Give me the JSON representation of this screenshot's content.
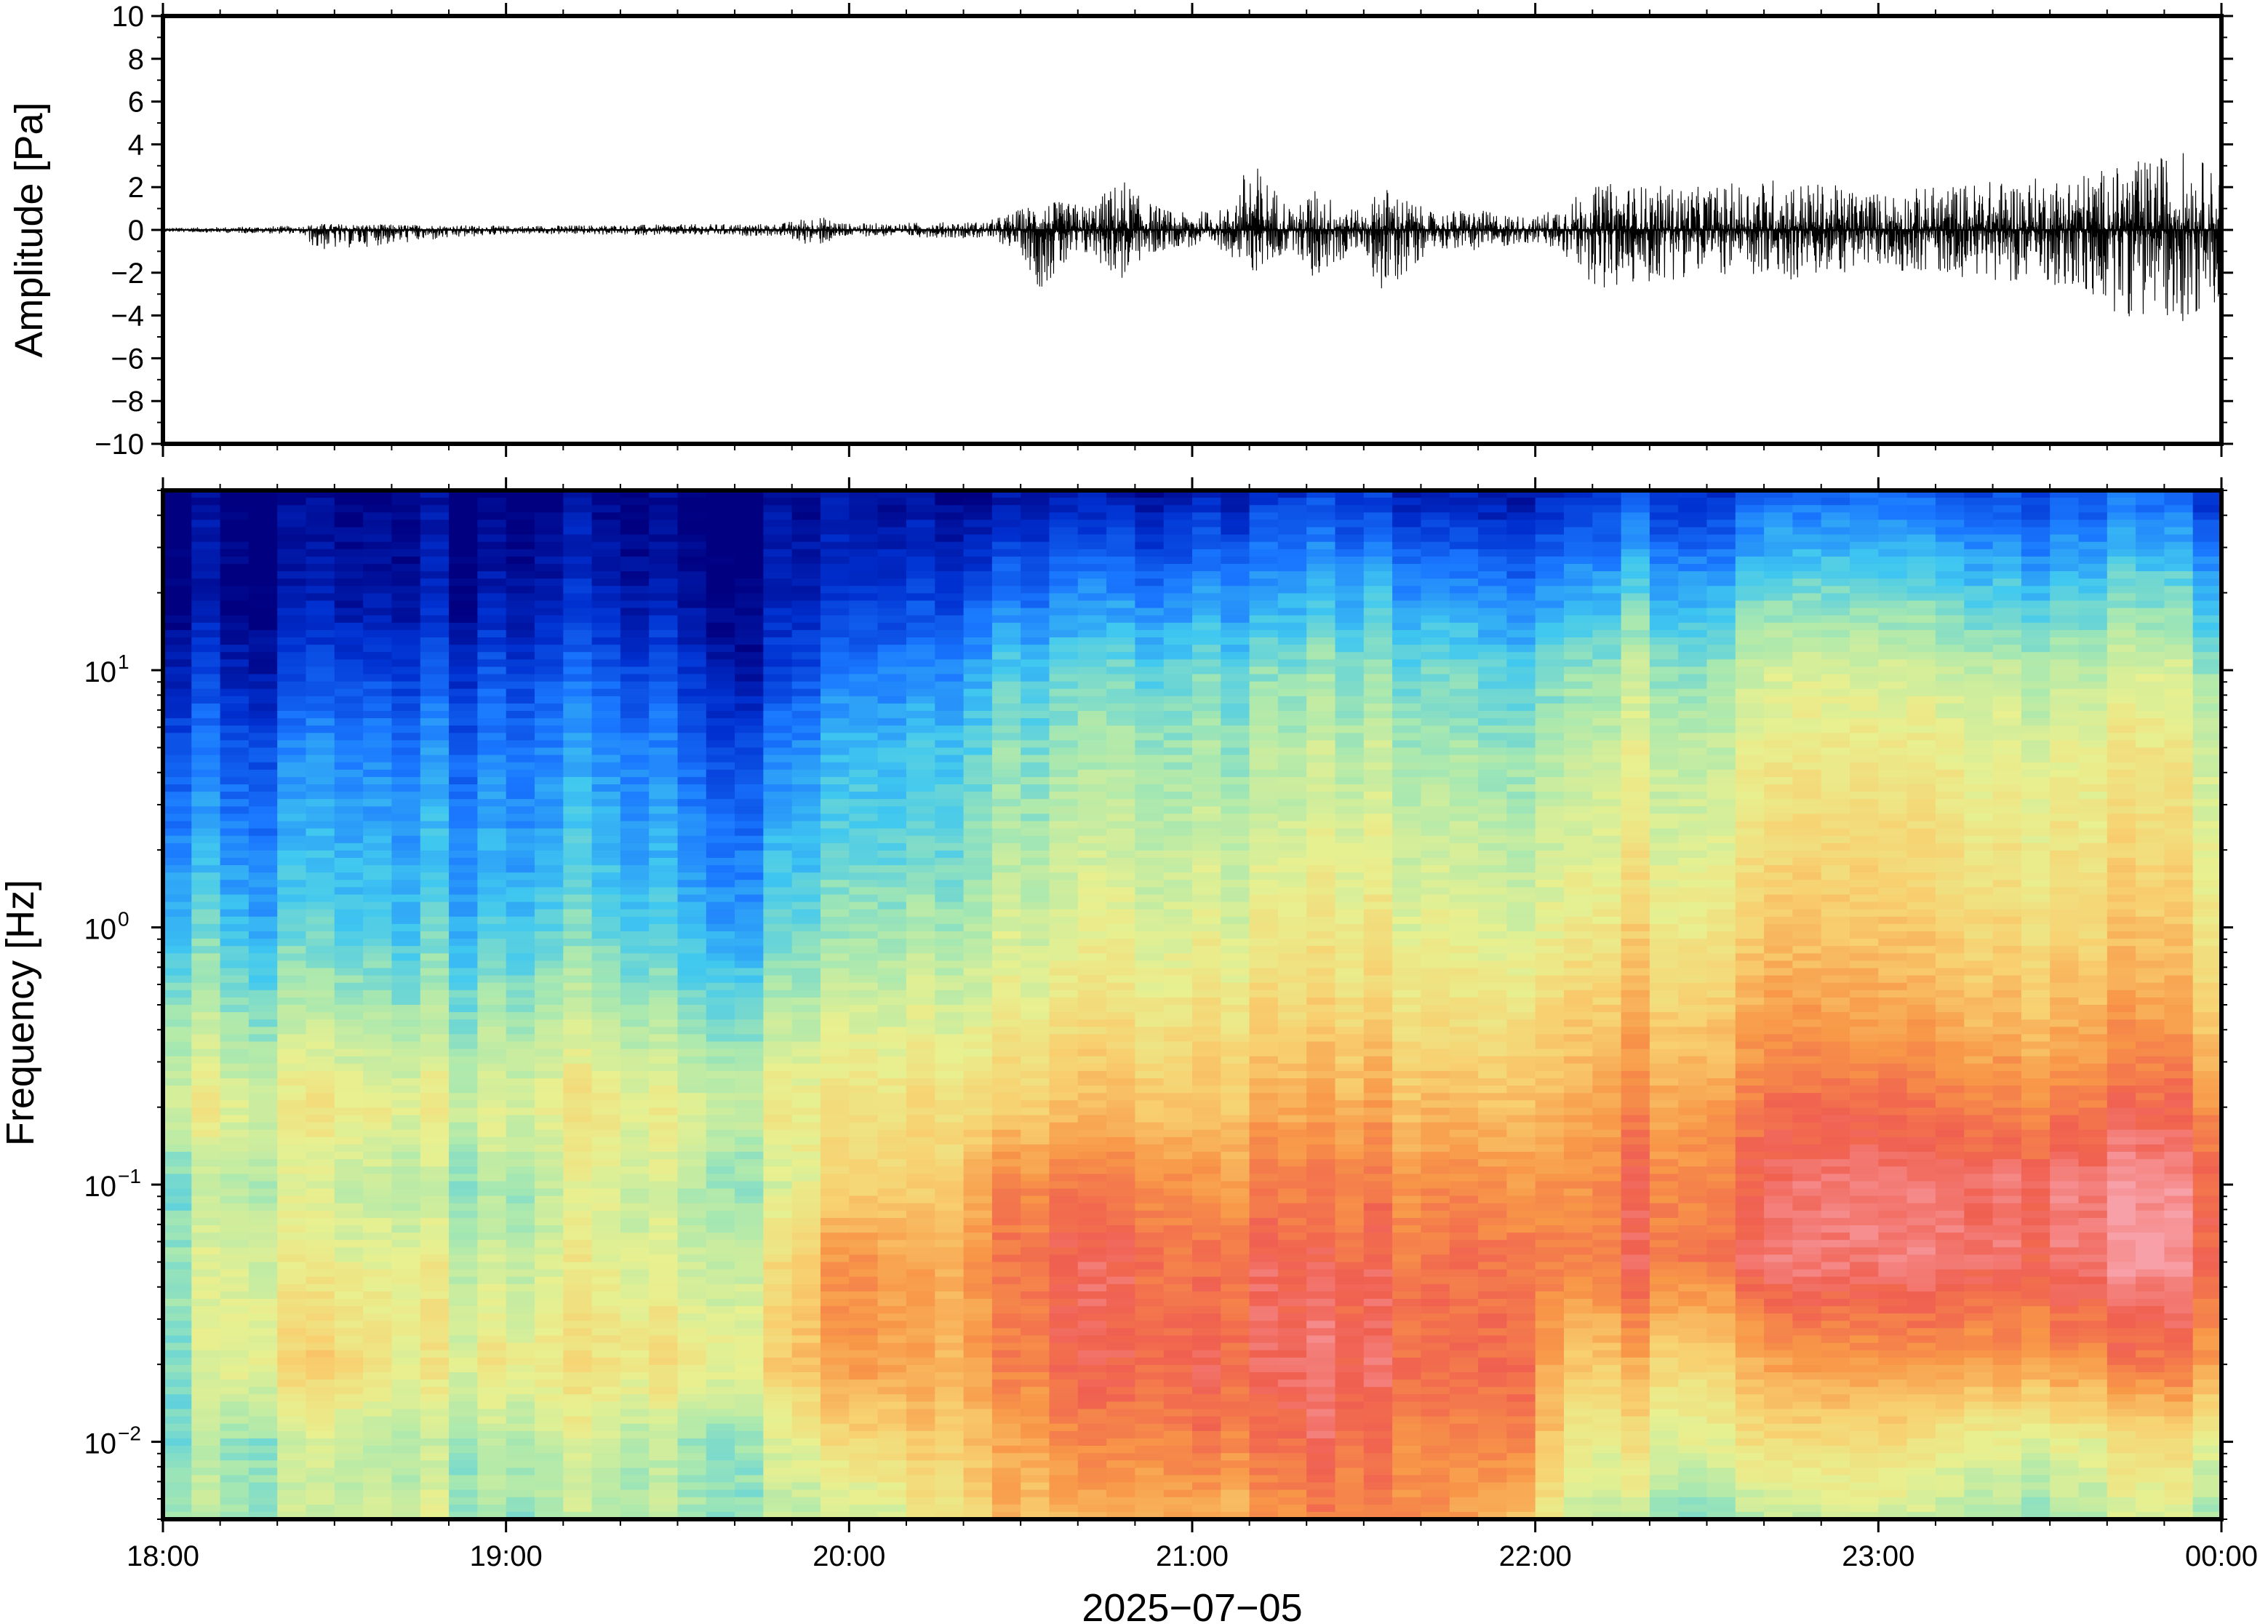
{
  "chart_data": [
    {
      "type": "line",
      "panel": "waveform",
      "ylabel": "Amplitude [Pa]",
      "ylim": [
        -10,
        10
      ],
      "yticks": [
        10,
        8,
        6,
        4,
        2,
        0,
        -2,
        -4,
        -6,
        -8,
        -10
      ],
      "ytick_labels": [
        "10",
        "8",
        "6",
        "4",
        "2",
        "0",
        "−2",
        "−4",
        "−6",
        "−8",
        "−10"
      ],
      "xlim_hours": [
        18,
        24
      ],
      "grid": false,
      "series": [
        {
          "color": "#000000",
          "envelope": {
            "t_hours": [
              18.0,
              18.4,
              18.45,
              19.0,
              19.8,
              19.9,
              20.0,
              20.4,
              20.5,
              20.55,
              20.7,
              20.8,
              20.85,
              20.95,
              21.1,
              21.17,
              21.3,
              21.35,
              21.5,
              21.55,
              21.7,
              21.8,
              21.95,
              22.0,
              22.1,
              22.2,
              22.5,
              22.7,
              23.0,
              23.3,
              23.5,
              23.7,
              23.9,
              24.0
            ],
            "max_pa": [
              0.1,
              0.2,
              0.3,
              0.2,
              0.3,
              0.7,
              0.3,
              0.4,
              1.0,
              1.4,
              1.2,
              2.5,
              1.5,
              0.8,
              1.0,
              3.4,
              0.9,
              2.0,
              0.8,
              2.2,
              0.8,
              1.0,
              0.7,
              0.6,
              1.5,
              2.2,
              2.0,
              2.5,
              1.8,
              2.3,
              2.5,
              3.0,
              3.8,
              2.6
            ],
            "min_pa": [
              -0.1,
              -0.2,
              -1.0,
              -0.2,
              -0.3,
              -0.8,
              -0.3,
              -0.4,
              -1.0,
              -2.8,
              -1.2,
              -2.5,
              -1.5,
              -0.8,
              -1.0,
              -2.2,
              -0.9,
              -2.4,
              -0.8,
              -3.3,
              -0.8,
              -1.0,
              -0.7,
              -0.6,
              -1.5,
              -3.0,
              -2.0,
              -2.5,
              -1.8,
              -2.3,
              -2.5,
              -4.0,
              -4.3,
              -3.6
            ]
          }
        }
      ]
    },
    {
      "type": "heatmap",
      "panel": "spectrogram",
      "ylabel": "Frequency [Hz]",
      "yscale": "log",
      "ylim": [
        0.005,
        50
      ],
      "yticks": [
        0.01,
        0.1,
        1,
        10
      ],
      "ytick_base": "10",
      "ytick_exponents": [
        "−2",
        "−1",
        "0",
        "1"
      ],
      "xlabel": "2025−07−05",
      "xlim_hours": [
        18,
        24
      ],
      "xticks_hours": [
        18,
        19,
        20,
        21,
        22,
        23,
        24
      ],
      "xtick_labels": [
        "18:00",
        "19:00",
        "20:00",
        "21:00",
        "22:00",
        "23:00",
        "00:00"
      ],
      "colormap": [
        "#000080",
        "#0030d0",
        "#1a78ff",
        "#40c8f0",
        "#a8e8b0",
        "#e8f090",
        "#f8d070",
        "#f89848",
        "#f06050",
        "#f8a0a8"
      ],
      "level_scale": "relative power, 0 (dark blue) to 1 (pink)",
      "grid": false,
      "time_columns_hours": [
        18.0,
        18.25,
        18.5,
        18.75,
        19.0,
        19.25,
        19.5,
        19.75,
        20.0,
        20.25,
        20.45,
        20.6,
        20.75,
        20.9,
        21.05,
        21.2,
        21.35,
        21.5,
        21.65,
        21.8,
        21.95,
        22.1,
        22.3,
        22.5,
        22.75,
        23.0,
        23.25,
        23.5,
        23.75,
        24.0
      ],
      "freq_rows_hz": [
        0.005,
        0.01,
        0.02,
        0.05,
        0.1,
        0.2,
        0.5,
        1,
        2,
        5,
        10,
        20,
        50
      ],
      "levels": [
        [
          0.45,
          0.45,
          0.48,
          0.5,
          0.45,
          0.45,
          0.48,
          0.45,
          0.45,
          0.55,
          0.72,
          0.7,
          0.72,
          0.75,
          0.72,
          0.75,
          0.78,
          0.8,
          0.82,
          0.75,
          0.7,
          0.55,
          0.48,
          0.45,
          0.45,
          0.48,
          0.45,
          0.45,
          0.48,
          0.5
        ],
        [
          0.42,
          0.45,
          0.5,
          0.45,
          0.48,
          0.5,
          0.45,
          0.48,
          0.6,
          0.65,
          0.72,
          0.78,
          0.8,
          0.8,
          0.85,
          0.82,
          0.88,
          0.85,
          0.82,
          0.8,
          0.85,
          0.62,
          0.58,
          0.6,
          0.58,
          0.6,
          0.55,
          0.55,
          0.58,
          0.6
        ],
        [
          0.4,
          0.6,
          0.65,
          0.55,
          0.6,
          0.58,
          0.62,
          0.6,
          0.75,
          0.7,
          0.8,
          0.85,
          0.88,
          0.85,
          0.9,
          0.88,
          0.92,
          0.9,
          0.88,
          0.85,
          0.88,
          0.72,
          0.7,
          0.68,
          0.72,
          0.72,
          0.75,
          0.78,
          0.8,
          0.82
        ],
        [
          0.45,
          0.55,
          0.55,
          0.55,
          0.5,
          0.55,
          0.52,
          0.55,
          0.78,
          0.7,
          0.82,
          0.88,
          0.9,
          0.85,
          0.85,
          0.88,
          0.85,
          0.88,
          0.85,
          0.85,
          0.85,
          0.85,
          0.88,
          0.88,
          0.9,
          0.9,
          0.92,
          0.92,
          0.95,
          0.92
        ],
        [
          0.4,
          0.5,
          0.5,
          0.45,
          0.45,
          0.52,
          0.5,
          0.45,
          0.62,
          0.62,
          0.8,
          0.82,
          0.82,
          0.8,
          0.78,
          0.8,
          0.8,
          0.82,
          0.8,
          0.8,
          0.78,
          0.82,
          0.85,
          0.86,
          0.88,
          0.9,
          0.92,
          0.94,
          0.95,
          0.92
        ],
        [
          0.55,
          0.55,
          0.58,
          0.55,
          0.55,
          0.58,
          0.55,
          0.55,
          0.58,
          0.6,
          0.65,
          0.68,
          0.7,
          0.68,
          0.7,
          0.72,
          0.72,
          0.74,
          0.72,
          0.7,
          0.7,
          0.78,
          0.8,
          0.8,
          0.82,
          0.82,
          0.82,
          0.82,
          0.84,
          0.84
        ],
        [
          0.45,
          0.42,
          0.45,
          0.42,
          0.45,
          0.45,
          0.42,
          0.42,
          0.48,
          0.5,
          0.55,
          0.58,
          0.6,
          0.58,
          0.62,
          0.62,
          0.62,
          0.64,
          0.62,
          0.6,
          0.6,
          0.7,
          0.7,
          0.7,
          0.72,
          0.7,
          0.7,
          0.7,
          0.72,
          0.7
        ],
        [
          0.36,
          0.33,
          0.35,
          0.33,
          0.35,
          0.36,
          0.33,
          0.32,
          0.4,
          0.42,
          0.5,
          0.52,
          0.55,
          0.52,
          0.56,
          0.55,
          0.56,
          0.58,
          0.56,
          0.55,
          0.52,
          0.62,
          0.63,
          0.63,
          0.64,
          0.64,
          0.64,
          0.64,
          0.65,
          0.64
        ],
        [
          0.28,
          0.26,
          0.3,
          0.28,
          0.3,
          0.3,
          0.28,
          0.26,
          0.34,
          0.36,
          0.45,
          0.48,
          0.5,
          0.48,
          0.52,
          0.5,
          0.52,
          0.54,
          0.52,
          0.5,
          0.48,
          0.58,
          0.58,
          0.58,
          0.6,
          0.6,
          0.6,
          0.6,
          0.61,
          0.6
        ],
        [
          0.2,
          0.18,
          0.24,
          0.22,
          0.24,
          0.24,
          0.22,
          0.18,
          0.28,
          0.3,
          0.4,
          0.42,
          0.44,
          0.42,
          0.46,
          0.44,
          0.46,
          0.48,
          0.46,
          0.44,
          0.42,
          0.52,
          0.53,
          0.53,
          0.54,
          0.55,
          0.55,
          0.55,
          0.56,
          0.55
        ],
        [
          0.1,
          0.08,
          0.14,
          0.12,
          0.16,
          0.16,
          0.14,
          0.08,
          0.2,
          0.22,
          0.33,
          0.35,
          0.38,
          0.35,
          0.4,
          0.38,
          0.4,
          0.42,
          0.4,
          0.38,
          0.35,
          0.46,
          0.47,
          0.47,
          0.48,
          0.48,
          0.48,
          0.48,
          0.49,
          0.48
        ],
        [
          0.02,
          0.02,
          0.04,
          0.04,
          0.06,
          0.06,
          0.05,
          0.03,
          0.08,
          0.1,
          0.2,
          0.22,
          0.24,
          0.22,
          0.28,
          0.26,
          0.28,
          0.3,
          0.28,
          0.26,
          0.22,
          0.33,
          0.34,
          0.34,
          0.35,
          0.35,
          0.35,
          0.35,
          0.36,
          0.35
        ],
        [
          0.0,
          0.0,
          0.0,
          0.0,
          0.0,
          0.0,
          0.0,
          0.0,
          0.0,
          0.0,
          0.02,
          0.03,
          0.04,
          0.03,
          0.08,
          0.08,
          0.1,
          0.1,
          0.08,
          0.06,
          0.04,
          0.14,
          0.14,
          0.14,
          0.15,
          0.15,
          0.15,
          0.15,
          0.16,
          0.15
        ]
      ]
    }
  ]
}
